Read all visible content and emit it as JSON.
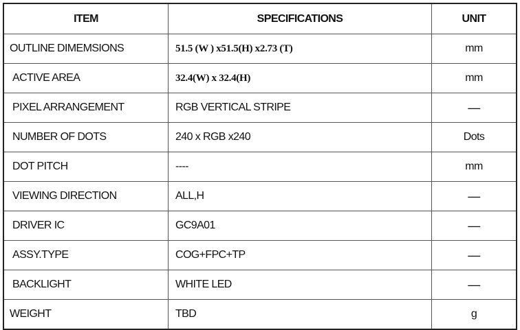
{
  "headers": {
    "item": "ITEM",
    "specifications": "SPECIFICATIONS",
    "unit": "UNIT"
  },
  "rows": [
    {
      "item": "OUTLINE DIMEMSIONS",
      "spec": "51.5 (W ) x51.5(H) x2.73 (T)",
      "unit": "mm"
    },
    {
      "item": "ACTIVE AREA",
      "spec": "32.4(W) x 32.4(H)",
      "unit": "mm"
    },
    {
      "item": "PIXEL ARRANGEMENT",
      "spec": "RGB VERTICAL STRIPE",
      "unit": "—"
    },
    {
      "item": "NUMBER OF DOTS",
      "spec": "240 x RGB x240",
      "unit": "Dots"
    },
    {
      "item": "DOT PITCH",
      "spec": "----",
      "unit": "mm"
    },
    {
      "item": "VIEWING DIRECTION",
      "spec": "ALL,H",
      "unit": "—"
    },
    {
      "item": "DRIVER IC",
      "spec": "GC9A01",
      "unit": "—"
    },
    {
      "item": "ASSY.TYPE",
      "spec": "COG+FPC+TP",
      "unit": "—"
    },
    {
      "item": "BACKLIGHT",
      "spec": "WHITE LED",
      "unit": "—"
    },
    {
      "item": "WEIGHT",
      "spec": "TBD",
      "unit": "g"
    }
  ]
}
